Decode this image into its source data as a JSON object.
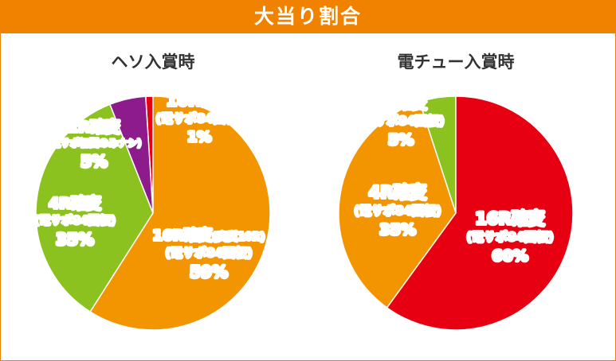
{
  "header": {
    "title": "大当り割合"
  },
  "colors": {
    "orange": "#f29500",
    "green": "#8cc21f",
    "purple": "#8d1b8c",
    "red": "#e60012",
    "header_bg": "#f08200"
  },
  "chart_data": [
    {
      "type": "pie",
      "title": "ヘソ入賞時",
      "slices": [
        {
          "name": "16R確変(実質10R)",
          "sub": "(電サポ84回転)",
          "value": 59,
          "value_label": "59%",
          "color": "#f29500"
        },
        {
          "name": "4R確変",
          "sub": "(電サポ84回転)",
          "value": 35,
          "value_label": "35%",
          "color": "#8cc21f"
        },
        {
          "name": "2R確変",
          "sub": "(電サポ初回のみナシ)",
          "value": 5,
          "value_label": "5%",
          "color": "#8d1b8c"
        },
        {
          "name": "16R確変",
          "sub": "(電サポ84回転)",
          "value": 1,
          "value_label": "1%",
          "color": "#e60012"
        }
      ]
    },
    {
      "type": "pie",
      "title": "電チュー入賞時",
      "slices": [
        {
          "name": "16R確変",
          "sub": "(電サポ84回転)",
          "value": 60,
          "value_label": "60%",
          "color": "#e60012"
        },
        {
          "name": "4R確変",
          "sub": "(電サポ84回転)",
          "value": 35,
          "value_label": "35%",
          "color": "#f29500"
        },
        {
          "name": "2R確変",
          "sub": "(電サポ84回転)",
          "value": 5,
          "value_label": "5%",
          "color": "#8cc21f"
        }
      ]
    }
  ]
}
